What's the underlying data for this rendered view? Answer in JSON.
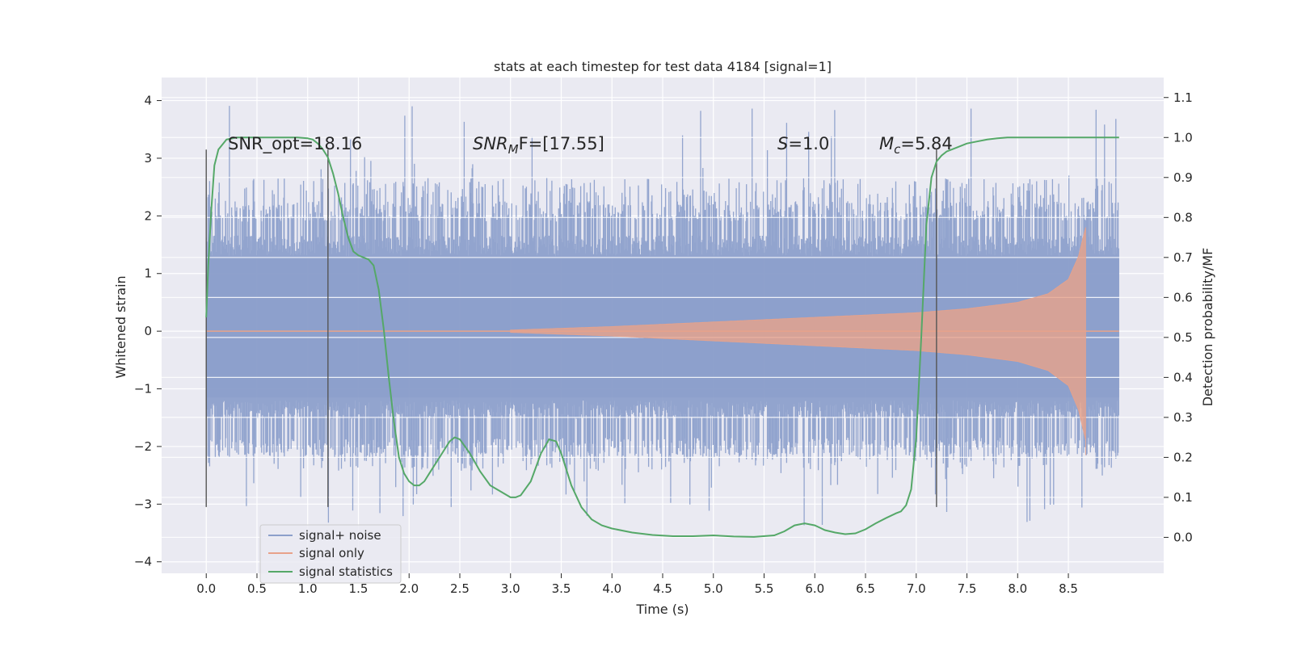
{
  "chart_data": {
    "type": "line",
    "title": "stats at each timestep for test data 4184 [signal=1]",
    "xlabel": "Time (s)",
    "ylabel": "Whitened strain",
    "y2label": "Detection probability/MF",
    "xlim": [
      -0.44,
      9.44
    ],
    "ylim": [
      -4.2,
      4.4
    ],
    "y2lim": [
      -0.09,
      1.15
    ],
    "x_ticks": [
      0.0,
      0.5,
      1.0,
      1.5,
      2.0,
      2.5,
      3.0,
      3.5,
      4.0,
      4.5,
      5.0,
      5.5,
      6.0,
      6.5,
      7.0,
      7.5,
      8.0,
      8.5
    ],
    "x_tick_labels": [
      "0.0",
      "0.5",
      "1.0",
      "1.5",
      "2.0",
      "2.5",
      "3.0",
      "3.5",
      "4.0",
      "4.5",
      "5.0",
      "5.5",
      "6.0",
      "6.5",
      "7.0",
      "7.5",
      "8.0",
      "8.5"
    ],
    "y_ticks": [
      -4,
      -3,
      -2,
      -1,
      0,
      1,
      2,
      3,
      4
    ],
    "y_tick_labels": [
      "−4",
      "−3",
      "−2",
      "−1",
      "0",
      "1",
      "2",
      "3",
      "4"
    ],
    "y2_ticks": [
      0.0,
      0.1,
      0.2,
      0.3,
      0.4,
      0.5,
      0.6,
      0.7,
      0.8,
      0.9,
      1.0,
      1.1
    ],
    "y2_tick_labels": [
      "0.0",
      "0.1",
      "0.2",
      "0.3",
      "0.4",
      "0.5",
      "0.6",
      "0.7",
      "0.8",
      "0.9",
      "1.0",
      "1.1"
    ],
    "legend": {
      "placement": "lower-left",
      "entries": [
        {
          "label": "signal+ noise",
          "color": "#8da0cb"
        },
        {
          "label": "signal only",
          "color": "#e8a28a"
        },
        {
          "label": "signal statistics",
          "color": "#55a868"
        }
      ]
    },
    "annotations": {
      "snr_opt": "SNR_opt=18.16",
      "snr_mf_name": "SNR",
      "snr_mf_sub": "M",
      "snr_mf_rest": "F=[17.55]",
      "s_name": "S",
      "s_rest": "=1.0",
      "mc_name": "M",
      "mc_sub": "c",
      "mc_rest": "=5.84"
    },
    "vlines_x": [
      0.0,
      1.2,
      7.2
    ],
    "vline_y_range": [
      -3.05,
      3.15
    ],
    "noise": {
      "x_range": [
        0.0,
        9.0
      ],
      "bands": [
        {
          "sigma_level": 1,
          "low": -1.2,
          "high": 1.3
        },
        {
          "sigma_level": 2,
          "low": -1.85,
          "high": 1.9
        },
        {
          "sigma_level": 3,
          "low": -2.1,
          "high": 2.3
        }
      ]
    },
    "signal_only": {
      "start": 3.0,
      "merger": 8.67,
      "amplitude_at": [
        {
          "x": 3.0,
          "amp": 0.02
        },
        {
          "x": 4.0,
          "amp": 0.08
        },
        {
          "x": 5.0,
          "amp": 0.16
        },
        {
          "x": 6.0,
          "amp": 0.24
        },
        {
          "x": 7.0,
          "amp": 0.32
        },
        {
          "x": 7.5,
          "amp": 0.39
        },
        {
          "x": 8.0,
          "amp": 0.5
        },
        {
          "x": 8.3,
          "amp": 0.65
        },
        {
          "x": 8.5,
          "amp": 0.9
        },
        {
          "x": 8.6,
          "amp": 1.3
        },
        {
          "x": 8.67,
          "amp": 1.8
        }
      ]
    },
    "signal_statistics": {
      "x": [
        0.0,
        0.02,
        0.05,
        0.08,
        0.12,
        0.2,
        0.3,
        0.5,
        0.7,
        0.9,
        1.0,
        1.05,
        1.1,
        1.15,
        1.2,
        1.25,
        1.3,
        1.35,
        1.4,
        1.45,
        1.5,
        1.55,
        1.6,
        1.65,
        1.7,
        1.75,
        1.8,
        1.85,
        1.9,
        1.95,
        2.0,
        2.05,
        2.1,
        2.15,
        2.2,
        2.3,
        2.4,
        2.45,
        2.5,
        2.6,
        2.7,
        2.8,
        2.9,
        3.0,
        3.05,
        3.1,
        3.2,
        3.3,
        3.38,
        3.45,
        3.5,
        3.6,
        3.7,
        3.8,
        3.9,
        4.0,
        4.2,
        4.4,
        4.6,
        4.8,
        5.0,
        5.2,
        5.4,
        5.6,
        5.7,
        5.8,
        5.9,
        6.0,
        6.1,
        6.2,
        6.3,
        6.4,
        6.5,
        6.6,
        6.7,
        6.8,
        6.85,
        6.9,
        6.95,
        7.0,
        7.05,
        7.1,
        7.15,
        7.2,
        7.25,
        7.3,
        7.4,
        7.5,
        7.6,
        7.7,
        7.8,
        7.9,
        8.0,
        8.5,
        9.0
      ],
      "y": [
        0.55,
        0.68,
        0.82,
        0.93,
        0.97,
        0.995,
        1.0,
        1.0,
        1.0,
        1.0,
        0.998,
        0.995,
        0.985,
        0.97,
        0.95,
        0.91,
        0.86,
        0.8,
        0.75,
        0.715,
        0.705,
        0.7,
        0.695,
        0.68,
        0.62,
        0.52,
        0.4,
        0.29,
        0.2,
        0.16,
        0.14,
        0.13,
        0.13,
        0.14,
        0.16,
        0.2,
        0.24,
        0.25,
        0.245,
        0.21,
        0.165,
        0.13,
        0.115,
        0.1,
        0.1,
        0.105,
        0.14,
        0.21,
        0.245,
        0.24,
        0.21,
        0.13,
        0.075,
        0.045,
        0.03,
        0.022,
        0.012,
        0.006,
        0.003,
        0.003,
        0.005,
        0.002,
        0.001,
        0.005,
        0.015,
        0.03,
        0.035,
        0.03,
        0.018,
        0.012,
        0.008,
        0.01,
        0.02,
        0.035,
        0.048,
        0.06,
        0.065,
        0.08,
        0.12,
        0.25,
        0.5,
        0.78,
        0.9,
        0.94,
        0.955,
        0.965,
        0.975,
        0.985,
        0.99,
        0.995,
        0.998,
        1.0,
        1.0,
        1.0,
        1.0
      ]
    }
  }
}
